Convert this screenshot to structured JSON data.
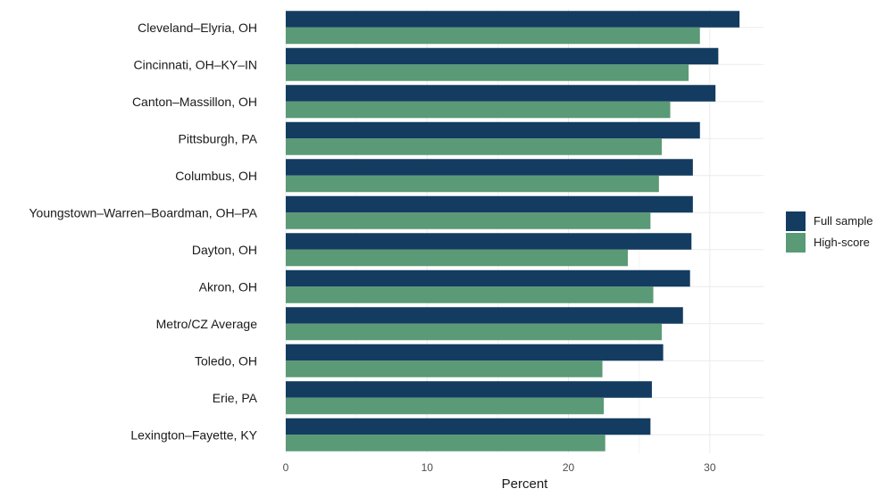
{
  "colors": {
    "full_sample": "#133c60",
    "high_score": "#5a9a76",
    "grid": "#ebebeb"
  },
  "chart_data": {
    "type": "bar",
    "orientation": "horizontal",
    "categories": [
      "Cleveland–Elyria, OH",
      "Cincinnati, OH–KY–IN",
      "Canton–Massillon, OH",
      "Pittsburgh, PA",
      "Columbus, OH",
      "Youngstown–Warren–Boardman, OH–PA",
      "Dayton, OH",
      "Akron, OH",
      "Metro/CZ Average",
      "Toledo, OH",
      "Erie, PA",
      "Lexington–Fayette, KY"
    ],
    "series": [
      {
        "name": "Full sample",
        "color": "#133c60",
        "values": [
          32.1,
          30.6,
          30.4,
          29.3,
          28.8,
          28.8,
          28.7,
          28.6,
          28.1,
          26.7,
          25.9,
          25.8
        ]
      },
      {
        "name": "High-score",
        "color": "#5a9a76",
        "values": [
          29.3,
          28.5,
          27.2,
          26.6,
          26.4,
          25.8,
          24.2,
          26.0,
          26.6,
          22.4,
          22.5,
          22.6
        ]
      }
    ],
    "xlabel": "Percent",
    "ylabel": "",
    "title": "",
    "xlim": [
      0,
      33.8
    ],
    "xticks": [
      0,
      10,
      20,
      30
    ],
    "grid": true,
    "legend": "right"
  }
}
